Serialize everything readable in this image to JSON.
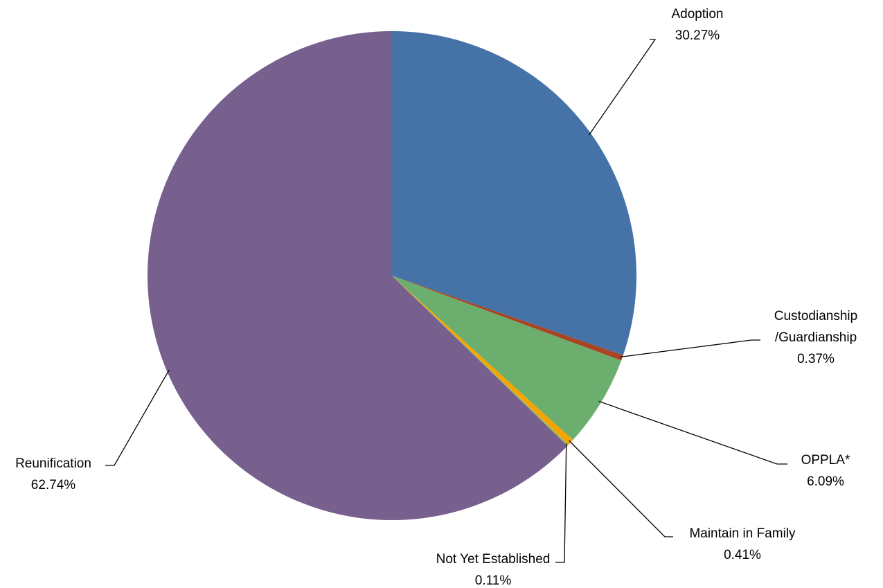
{
  "chart_data": {
    "type": "pie",
    "title": "",
    "slices": [
      {
        "name": "Adoption",
        "label_lines": [
          "Adoption"
        ],
        "value": 30.27,
        "value_label": "30.27%",
        "color": "#4572A7"
      },
      {
        "name": "Custodianship/Guardianship",
        "label_lines": [
          "Custodianship",
          "/Guardianship"
        ],
        "value": 0.37,
        "value_label": "0.37%",
        "color": "#AA4422"
      },
      {
        "name": "OPPLA*",
        "label_lines": [
          "OPPLA*"
        ],
        "value": 6.09,
        "value_label": "6.09%",
        "color": "#6BAE6E"
      },
      {
        "name": "Maintain in Family",
        "label_lines": [
          "Maintain in Family"
        ],
        "value": 0.41,
        "value_label": "0.41%",
        "color": "#F7A400"
      },
      {
        "name": "Not Yet Established",
        "label_lines": [
          "Not Yet Established"
        ],
        "value": 0.11,
        "value_label": "0.11%",
        "color": "#9BBB59"
      },
      {
        "name": "Reunification",
        "label_lines": [
          "Reunification"
        ],
        "value": 62.74,
        "value_label": "62.74%",
        "color": "#775F8E"
      }
    ],
    "start_angle": "12 o'clock",
    "direction": "clockwise",
    "legend": "none",
    "data_labels": "outside with leader lines"
  }
}
